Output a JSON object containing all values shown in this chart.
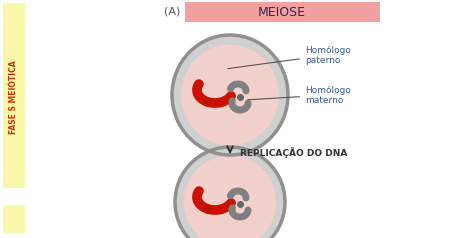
{
  "bg_color": "#ffffff",
  "left_bar_color": "#f8f8a8",
  "sidebar_text": "FASE S MEIÓTICA",
  "sidebar_text_color": "#cc3300",
  "header_box_color": "#f4a0a0",
  "header_text": "MEIOSE",
  "header_text_color": "#2a2a5a",
  "label_A_text": "(A)",
  "label_A_color": "#555555",
  "replication_text": "REPLICAÇÃO DO DNA",
  "replication_color": "#333333",
  "cell_outer_color": "#b0b0b0",
  "cell_inner_color": "#f2d0cc",
  "red_chrom_color": "#cc1100",
  "gray_chrom_color": "#808080",
  "label_paterno": "Homólogo\npaterno",
  "label_materno": "Homólogo\nmaterno",
  "label_color": "#3a5a8a"
}
